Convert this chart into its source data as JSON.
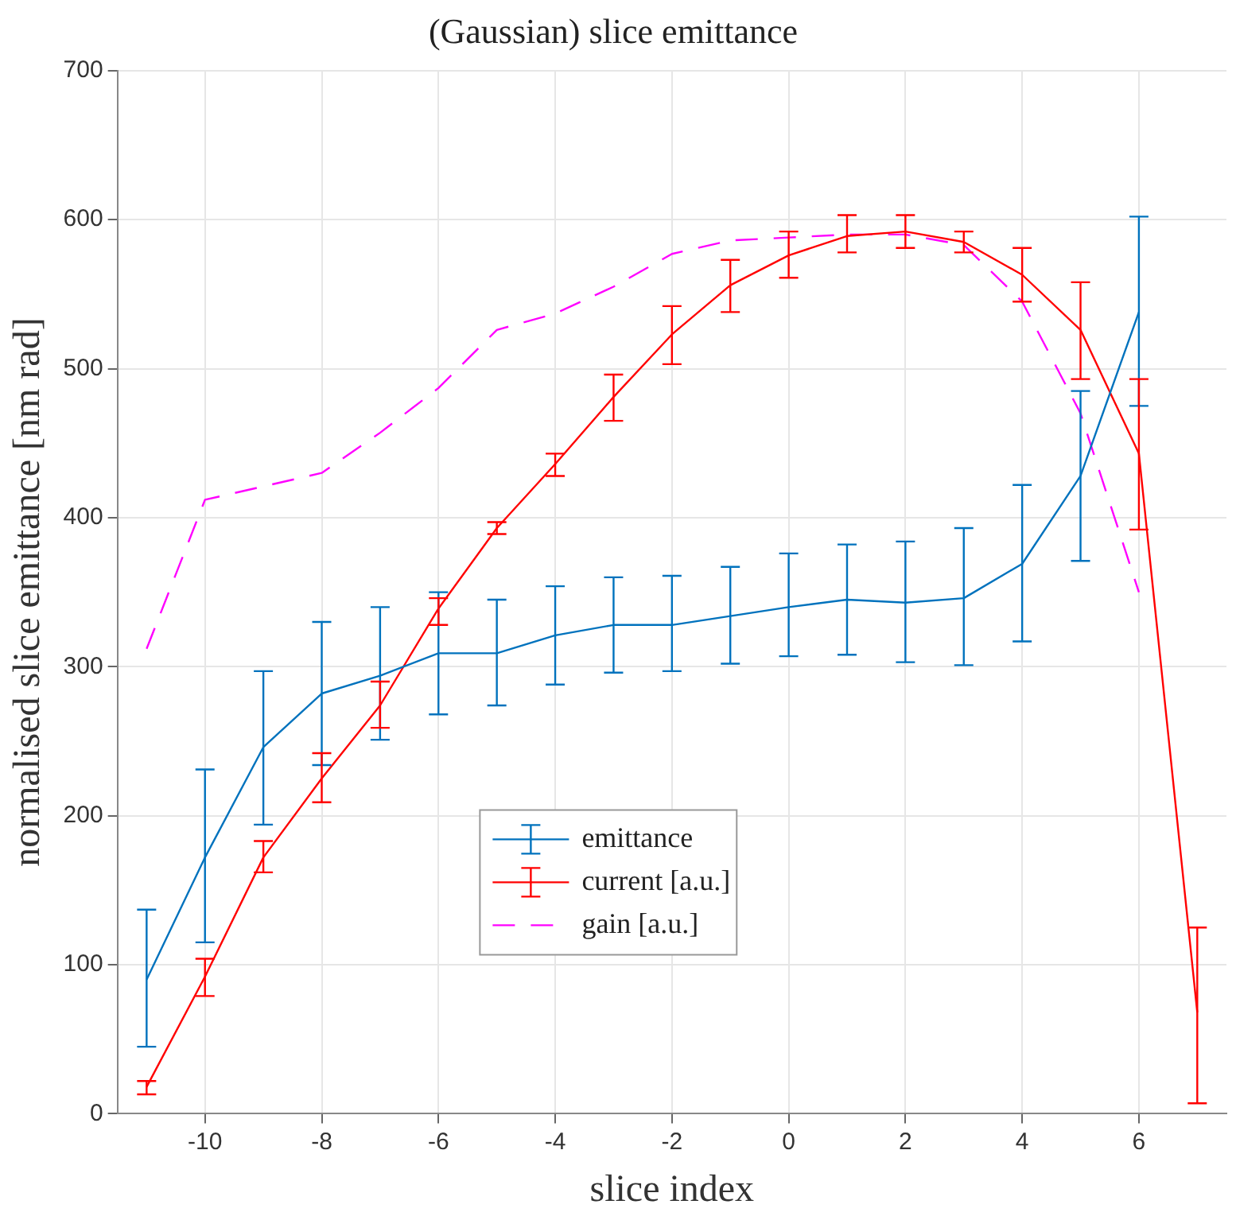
{
  "chart_data": {
    "type": "line",
    "title": "(Gaussian) slice emittance",
    "xlabel": "slice index",
    "ylabel": "normalised slice emittance [nm rad]",
    "xlim": [
      -11.5,
      7.5
    ],
    "xticks": [
      -10,
      -8,
      -6,
      -4,
      -2,
      0,
      2,
      4,
      6
    ],
    "ylim": [
      0,
      700
    ],
    "yticks": [
      0,
      100,
      200,
      300,
      400,
      500,
      600,
      700
    ],
    "grid": true,
    "legend": "bottom",
    "marker": "none",
    "series": [
      {
        "name": "emittance",
        "color": "#0072bd",
        "x": [
          -11,
          -10,
          -9,
          -8,
          -7,
          -6,
          -5,
          -4,
          -3,
          -2,
          -1,
          0,
          1,
          2,
          3,
          4,
          5,
          6
        ],
        "values": [
          90,
          172,
          246,
          282,
          294,
          309,
          309,
          321,
          328,
          328,
          334,
          340,
          345,
          343,
          346,
          369,
          428,
          538
        ],
        "errors": [
          [
            45,
            137
          ],
          [
            115,
            231
          ],
          [
            194,
            297
          ],
          [
            234,
            330
          ],
          [
            251,
            340
          ],
          [
            268,
            350
          ],
          [
            274,
            345
          ],
          [
            288,
            354
          ],
          [
            296,
            360
          ],
          [
            297,
            361
          ],
          [
            302,
            367
          ],
          [
            307,
            376
          ],
          [
            308,
            382
          ],
          [
            303,
            384
          ],
          [
            301,
            393
          ],
          [
            317,
            422
          ],
          [
            371,
            485
          ],
          [
            475,
            602
          ]
        ]
      },
      {
        "name": "current [a.u.]",
        "color": "#ff0000",
        "x": [
          -11,
          -10,
          -9,
          -8,
          -7,
          -6,
          -5,
          -4,
          -3,
          -2,
          -1,
          0,
          1,
          2,
          3,
          4,
          5,
          6,
          7
        ],
        "values": [
          18,
          92,
          172,
          225,
          274,
          339,
          393,
          436,
          481,
          523,
          556,
          576,
          589,
          592,
          585,
          563,
          526,
          443,
          68
        ],
        "errors": [
          [
            13,
            22
          ],
          [
            79,
            104
          ],
          [
            162,
            183
          ],
          [
            209,
            242
          ],
          [
            259,
            290
          ],
          [
            328,
            346
          ],
          [
            389,
            397
          ],
          [
            428,
            443
          ],
          [
            465,
            496
          ],
          [
            503,
            542
          ],
          [
            538,
            573
          ],
          [
            561,
            592
          ],
          [
            578,
            603
          ],
          [
            581,
            603
          ],
          [
            578,
            592
          ],
          [
            545,
            581
          ],
          [
            493,
            558
          ],
          [
            392,
            493
          ],
          [
            7,
            125
          ]
        ]
      },
      {
        "name": "gain [a.u.]",
        "color": "#ff00ff",
        "line_style": "dashed",
        "x": [
          -11,
          -10,
          -9,
          -8,
          -7,
          -6,
          -5,
          -4,
          -3,
          -2,
          -1,
          0,
          1,
          2,
          3,
          4,
          5,
          6
        ],
        "values": [
          312,
          412,
          421,
          430,
          457,
          487,
          526,
          537,
          555,
          577,
          586,
          588,
          590,
          590,
          583,
          545,
          470,
          350
        ]
      }
    ]
  }
}
